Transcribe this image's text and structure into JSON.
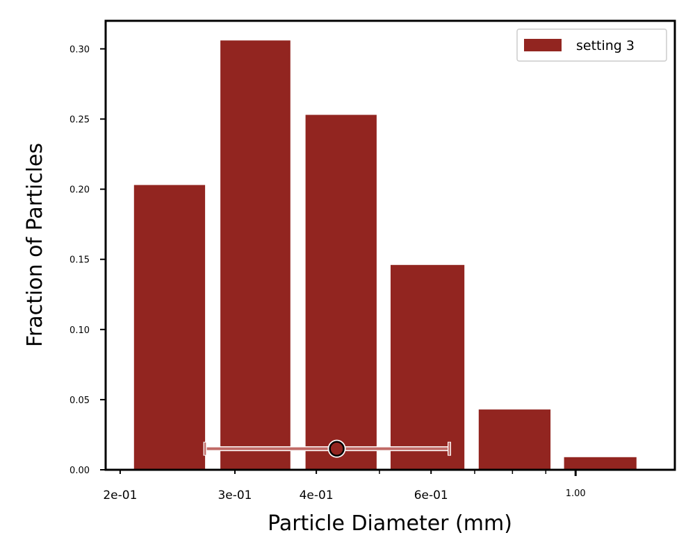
{
  "chart_data": {
    "type": "bar",
    "xlabel": "Particle Diameter (mm)",
    "ylabel": "Fraction of Particles",
    "x_scale": "log",
    "xlim": [
      0.19,
      1.42
    ],
    "ylim": [
      0,
      0.32
    ],
    "grid": false,
    "legend_position": "top-right",
    "bars": [
      {
        "x_start": 0.21,
        "x_end": 0.27,
        "value": 0.203
      },
      {
        "x_start": 0.285,
        "x_end": 0.365,
        "value": 0.306
      },
      {
        "x_start": 0.385,
        "x_end": 0.495,
        "value": 0.253
      },
      {
        "x_start": 0.52,
        "x_end": 0.675,
        "value": 0.146
      },
      {
        "x_start": 0.71,
        "x_end": 0.915,
        "value": 0.043
      },
      {
        "x_start": 0.96,
        "x_end": 1.24,
        "value": 0.009
      }
    ],
    "series": [
      {
        "name": "setting 3",
        "color": "#922520"
      }
    ],
    "summary_marker": {
      "center": 0.43,
      "lower": 0.27,
      "upper": 0.64,
      "y": 0.015,
      "line_color": "#c06a66",
      "marker_color": "#922520"
    },
    "x_ticks": [
      {
        "value": 0.2,
        "label": "2e-01",
        "size": "big"
      },
      {
        "value": 0.3,
        "label": "3e-01",
        "size": "big"
      },
      {
        "value": 0.4,
        "label": "4e-01",
        "size": "big"
      },
      {
        "value": 0.6,
        "label": "6e-01",
        "size": "big"
      },
      {
        "value": 1.0,
        "label": "1.00",
        "size": "small"
      }
    ],
    "x_minor_ticks": [
      0.5,
      0.7,
      0.8,
      0.9
    ],
    "y_ticks": [
      {
        "value": 0.0,
        "label": "0.00"
      },
      {
        "value": 0.05,
        "label": "0.05"
      },
      {
        "value": 0.1,
        "label": "0.10"
      },
      {
        "value": 0.15,
        "label": "0.15"
      },
      {
        "value": 0.2,
        "label": "0.20"
      },
      {
        "value": 0.25,
        "label": "0.25"
      },
      {
        "value": 0.3,
        "label": "0.30"
      }
    ]
  }
}
